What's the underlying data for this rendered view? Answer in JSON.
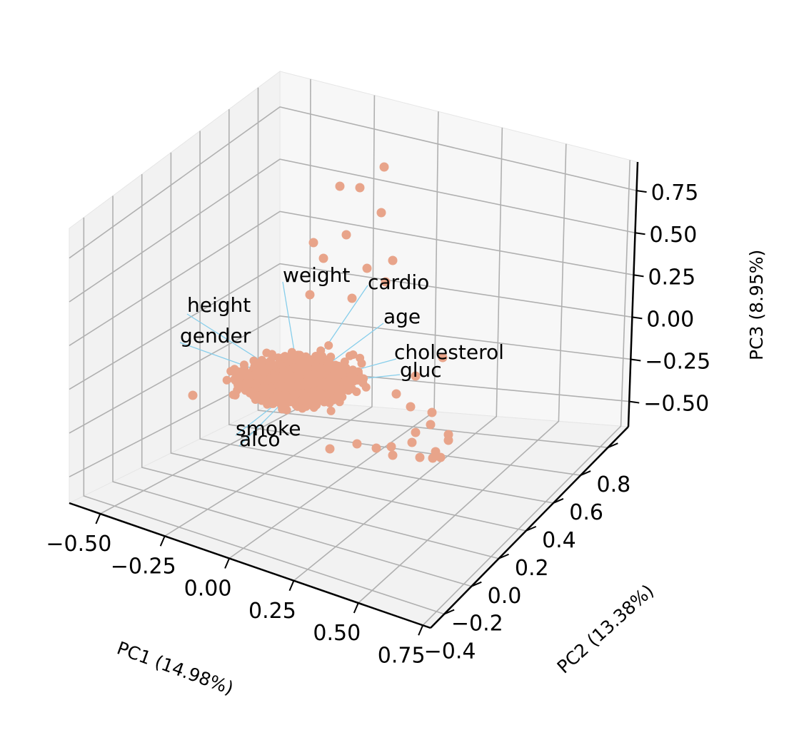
{
  "chart_data": {
    "type": "scatter",
    "projection": "3d",
    "title": "",
    "xlabel": "PC1 (14.98%)",
    "ylabel": "PC2 (13.38%)",
    "zlabel": "PC3 (8.95%)",
    "grid": true,
    "xlim": [
      -0.62,
      0.78
    ],
    "ylim": [
      -0.5,
      0.95
    ],
    "zlim": [
      -0.65,
      0.92
    ],
    "x_ticks": [
      "−0.50",
      "−0.25",
      "0.00",
      "0.25",
      "0.50",
      "0.75"
    ],
    "y_ticks": [
      "−0.4",
      "−0.2",
      "0.0",
      "0.2",
      "0.4",
      "0.6",
      "0.8"
    ],
    "z_ticks": [
      "−0.50",
      "−0.25",
      "0.00",
      "0.25",
      "0.50",
      "0.75"
    ],
    "point_color": "#E8A48A",
    "loading_color": "#87CEEB",
    "loadings": [
      {
        "label": "weight"
      },
      {
        "label": "cardio"
      },
      {
        "label": "height"
      },
      {
        "label": "age"
      },
      {
        "label": "gender"
      },
      {
        "label": "cholesterol"
      },
      {
        "label": "gluc"
      },
      {
        "label": "smoke"
      },
      {
        "label": "alco"
      }
    ],
    "points_note": "dense cloud of observations centered near the origin with outliers extending toward positive PC3"
  }
}
